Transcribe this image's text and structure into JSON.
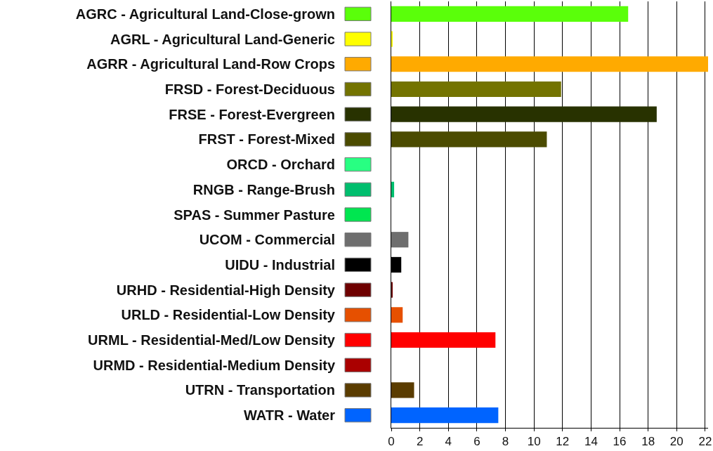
{
  "chart_data": {
    "type": "bar",
    "orientation": "horizontal",
    "categories": [
      "AGRC - Agricultural Land-Close-grown",
      "AGRL - Agricultural Land-Generic",
      "AGRR - Agricultural Land-Row Crops",
      "FRSD - Forest-Deciduous",
      "FRSE - Forest-Evergreen",
      "FRST - Forest-Mixed",
      "ORCD - Orchard",
      "RNGB - Range-Brush",
      "SPAS - Summer Pasture",
      "UCOM - Commercial",
      "UIDU - Industrial",
      "URHD - Residential-High Density",
      "URLD - Residential-Low Density",
      "URML - Residential-Med/Low Density",
      "URMD - Residential-Medium Density",
      "UTRN - Transportation",
      "WATR - Water"
    ],
    "values": [
      16.6,
      0.1,
      22.2,
      11.9,
      18.6,
      10.9,
      0,
      0.2,
      0,
      1.2,
      0.7,
      0.1,
      0.8,
      7.3,
      0,
      1.6,
      7.5
    ],
    "colors": [
      "#5aff0a",
      "#ffff00",
      "#ffaa00",
      "#737300",
      "#283200",
      "#4b4b00",
      "#28ff82",
      "#00be6e",
      "#00e650",
      "#6e6e6e",
      "#000000",
      "#6e0000",
      "#e65000",
      "#ff0000",
      "#aa0000",
      "#5a3c00",
      "#0064ff"
    ],
    "xlim": [
      0,
      22.2
    ],
    "xticks": [
      0,
      2,
      4,
      6,
      8,
      10,
      12,
      14,
      16,
      18,
      20,
      22
    ],
    "grid": "x"
  }
}
